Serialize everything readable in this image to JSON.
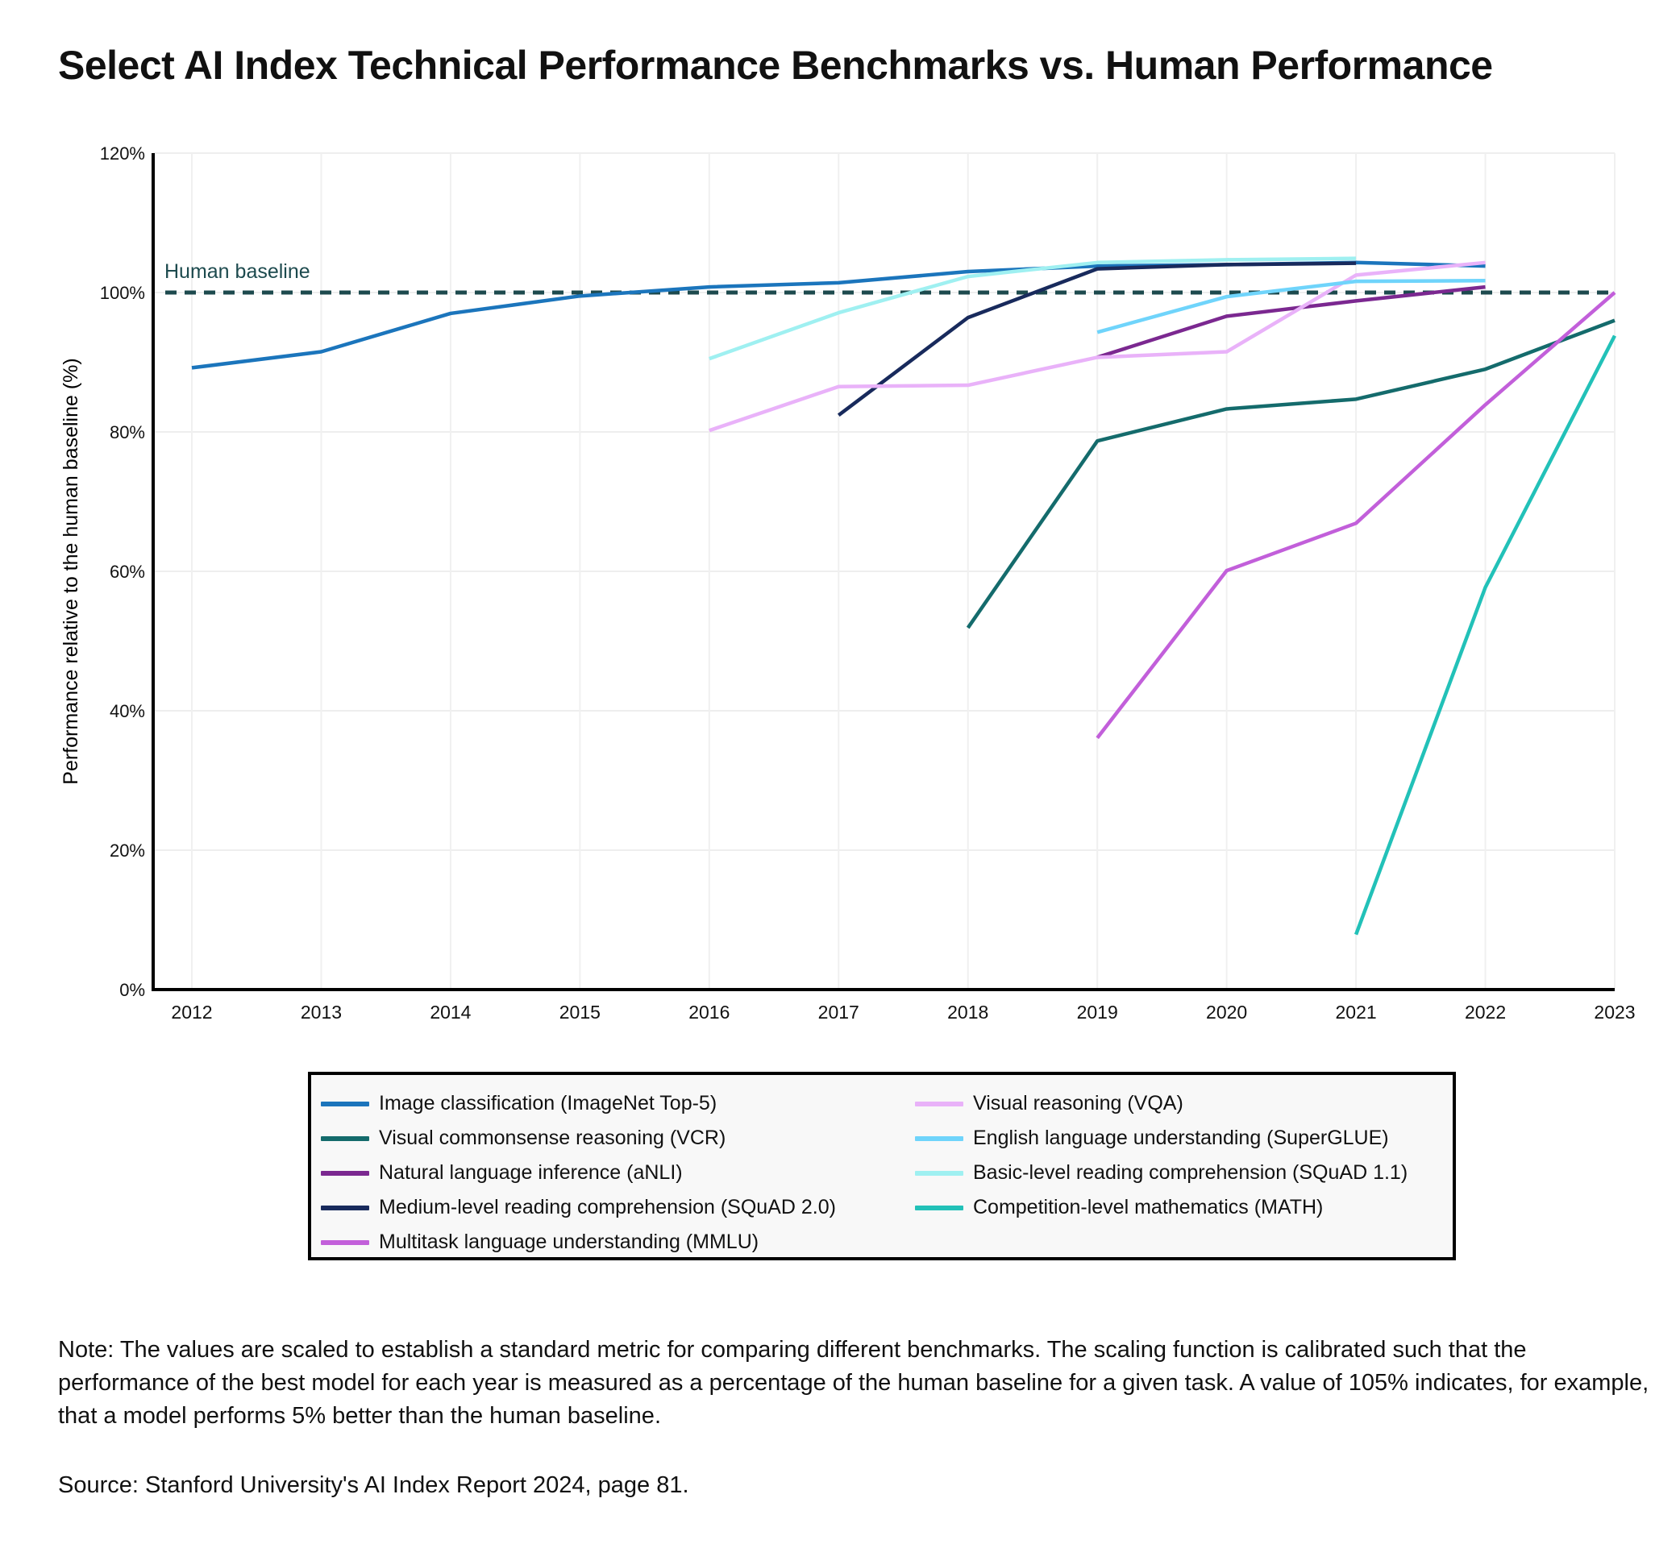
{
  "title": "Select AI Index Technical Performance Benchmarks vs. Human Performance",
  "chart_data": {
    "type": "line",
    "title": "Select AI Index Technical Performance Benchmarks vs. Human Performance",
    "xlabel": "",
    "ylabel": "Performance relative to the human baseline (%)",
    "x": [
      2012,
      2013,
      2014,
      2015,
      2016,
      2017,
      2018,
      2019,
      2020,
      2021,
      2022,
      2023
    ],
    "ylim": [
      0,
      120
    ],
    "yticks": [
      0,
      20,
      40,
      60,
      80,
      100,
      120
    ],
    "ytick_labels": [
      "0%",
      "20%",
      "40%",
      "60%",
      "80%",
      "100%",
      "120%"
    ],
    "grid": true,
    "legend_position": "bottom",
    "baseline": {
      "value": 100,
      "label": "Human baseline",
      "color": "#1d4a4e"
    },
    "series": [
      {
        "name": "Image classification (ImageNet Top-5)",
        "color": "#1b75bc",
        "points": [
          [
            2012,
            89.2
          ],
          [
            2013,
            91.5
          ],
          [
            2014,
            97.0
          ],
          [
            2015,
            99.5
          ],
          [
            2016,
            100.8
          ],
          [
            2017,
            101.4
          ],
          [
            2018,
            103.0
          ],
          [
            2019,
            103.8
          ],
          [
            2020,
            104.0
          ],
          [
            2021,
            104.3
          ],
          [
            2022,
            103.8
          ]
        ]
      },
      {
        "name": "Visual commonsense reasoning (VCR)",
        "color": "#146b6c",
        "points": [
          [
            2018,
            51.9
          ],
          [
            2019,
            78.7
          ],
          [
            2020,
            83.3
          ],
          [
            2021,
            84.7
          ],
          [
            2022,
            89.0
          ],
          [
            2023,
            96.0
          ]
        ]
      },
      {
        "name": "Natural language inference (aNLI)",
        "color": "#7b2890",
        "points": [
          [
            2019,
            90.7
          ],
          [
            2020,
            96.6
          ],
          [
            2021,
            98.8
          ],
          [
            2022,
            100.8
          ]
        ]
      },
      {
        "name": "Medium-level reading comprehension (SQuAD 2.0)",
        "color": "#182a5c",
        "points": [
          [
            2017,
            82.4
          ],
          [
            2018,
            96.4
          ],
          [
            2019,
            103.4
          ],
          [
            2020,
            104.0
          ],
          [
            2021,
            104.2
          ]
        ]
      },
      {
        "name": "Multitask language understanding (MMLU)",
        "color": "#c25fda",
        "points": [
          [
            2019,
            36.1
          ],
          [
            2020,
            60.1
          ],
          [
            2021,
            66.9
          ],
          [
            2022,
            83.9
          ],
          [
            2023,
            100.0
          ]
        ]
      },
      {
        "name": "Visual reasoning (VQA)",
        "color": "#e9b2f9",
        "points": [
          [
            2016,
            80.2
          ],
          [
            2017,
            86.5
          ],
          [
            2018,
            86.7
          ],
          [
            2019,
            90.7
          ],
          [
            2020,
            91.5
          ],
          [
            2021,
            102.5
          ],
          [
            2022,
            104.3
          ]
        ]
      },
      {
        "name": "English language understanding (SuperGLUE)",
        "color": "#6fd4fb",
        "points": [
          [
            2019,
            94.3
          ],
          [
            2020,
            99.4
          ],
          [
            2021,
            101.6
          ],
          [
            2022,
            101.7
          ]
        ]
      },
      {
        "name": "Basic-level reading comprehension (SQuAD 1.1)",
        "color": "#9ff0f1",
        "points": [
          [
            2016,
            90.5
          ],
          [
            2017,
            97.1
          ],
          [
            2018,
            102.3
          ],
          [
            2019,
            104.3
          ],
          [
            2020,
            104.7
          ],
          [
            2021,
            104.9
          ]
        ]
      },
      {
        "name": "Competition-level mathematics (MATH)",
        "color": "#22c1b8",
        "points": [
          [
            2021,
            7.9
          ],
          [
            2022,
            57.7
          ],
          [
            2023,
            93.8
          ]
        ]
      }
    ],
    "legend_order": [
      0,
      5,
      1,
      6,
      2,
      7,
      3,
      8,
      4
    ]
  },
  "note": "Note: The values are scaled to establish a standard metric for comparing different benchmarks. The scaling function is calibrated such that the performance of the best model for each year is measured as a percentage of the human baseline for a given task. A value of 105% indicates, for example, that a model performs 5% better than the human baseline.",
  "source": "Source: Stanford University's AI Index Report 2024, page 81."
}
